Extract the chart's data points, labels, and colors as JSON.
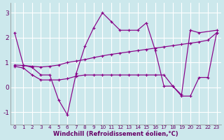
{
  "xlabel": "Windchill (Refroidissement éolien,°C)",
  "xlim": [
    -0.5,
    23.5
  ],
  "ylim": [
    -1.5,
    3.4
  ],
  "yticks": [
    -1,
    0,
    1,
    2,
    3
  ],
  "xticks": [
    0,
    1,
    2,
    3,
    4,
    5,
    6,
    7,
    8,
    9,
    10,
    11,
    12,
    13,
    14,
    15,
    16,
    17,
    18,
    19,
    20,
    21,
    22,
    23
  ],
  "bg_color": "#cce8ec",
  "grid_color": "#b0d8dc",
  "line_color": "#880088",
  "line1_x": [
    0,
    1,
    2,
    3,
    4,
    5,
    6,
    7,
    8,
    9,
    10,
    11,
    12,
    13,
    14,
    15,
    16,
    17,
    18,
    19,
    20,
    21,
    23
  ],
  "line1_y": [
    2.2,
    0.9,
    0.8,
    0.5,
    0.5,
    -0.5,
    -1.1,
    0.55,
    1.65,
    2.4,
    3.0,
    2.65,
    2.3,
    2.3,
    2.3,
    2.6,
    1.5,
    0.05,
    0.05,
    -0.3,
    2.3,
    2.2,
    2.3
  ],
  "line2_x": [
    0,
    1,
    2,
    3,
    4,
    5,
    6,
    7,
    8,
    9,
    10,
    11,
    12,
    13,
    14,
    15,
    16,
    17,
    18,
    19,
    20,
    21,
    22,
    23
  ],
  "line2_y": [
    0.9,
    0.88,
    0.85,
    0.82,
    0.85,
    0.9,
    1.0,
    1.06,
    1.12,
    1.2,
    1.27,
    1.33,
    1.38,
    1.43,
    1.48,
    1.53,
    1.58,
    1.63,
    1.68,
    1.73,
    1.78,
    1.83,
    1.9,
    2.2
  ],
  "line3_x": [
    0,
    1,
    2,
    3,
    4,
    5,
    6,
    7,
    8,
    9,
    10,
    11,
    12,
    13,
    14,
    15,
    16,
    17,
    18,
    19,
    20,
    21,
    22,
    23
  ],
  "line3_y": [
    0.85,
    0.78,
    0.5,
    0.3,
    0.3,
    0.3,
    0.35,
    0.45,
    0.5,
    0.5,
    0.5,
    0.5,
    0.5,
    0.5,
    0.5,
    0.5,
    0.5,
    0.5,
    0.05,
    -0.35,
    -0.35,
    0.4,
    0.4,
    2.2
  ]
}
